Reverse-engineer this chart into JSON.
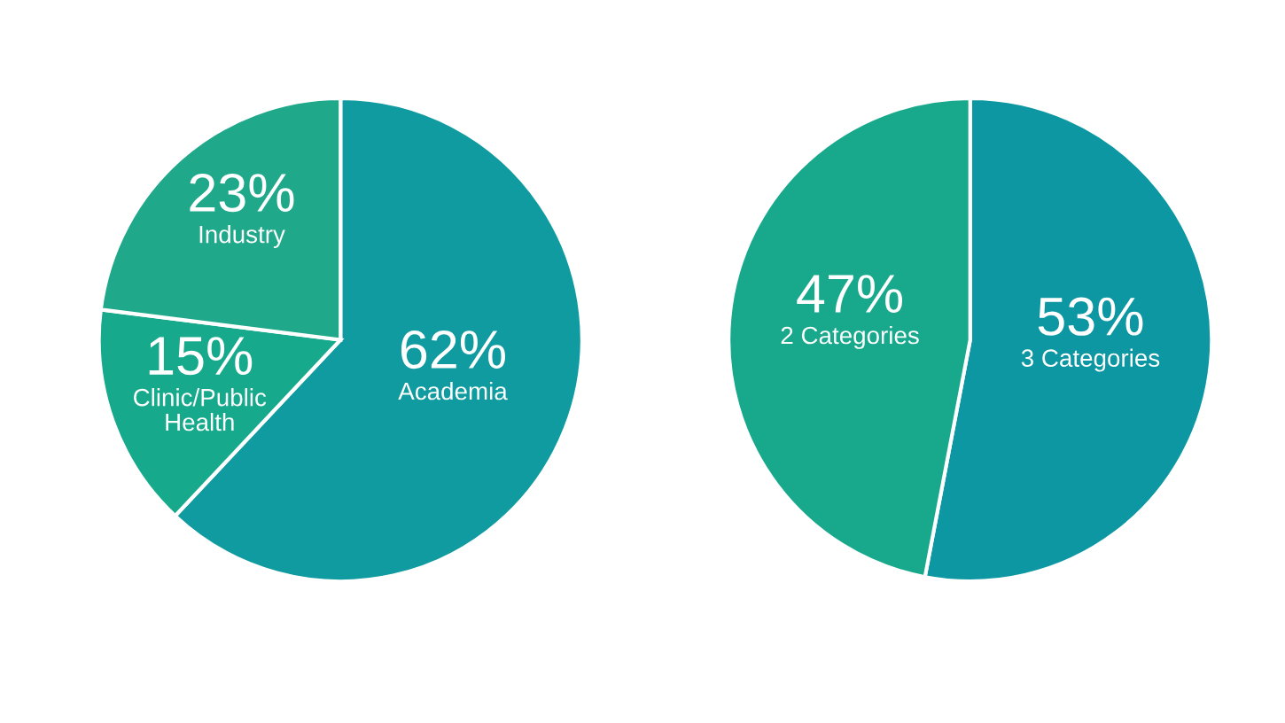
{
  "chart_data": [
    {
      "type": "pie",
      "categories": [
        "Academia",
        "Clinic/Public Health",
        "Industry"
      ],
      "values": [
        62,
        15,
        23
      ],
      "colors": [
        "#0f9b9f",
        "#16a98c",
        "#1fa98a"
      ],
      "value_labels": [
        "62%",
        "15%",
        "23%"
      ]
    },
    {
      "type": "pie",
      "categories": [
        "3 Categories",
        "2 Categories"
      ],
      "values": [
        53,
        47
      ],
      "colors": [
        "#0c97a3",
        "#18a98c"
      ],
      "value_labels": [
        "53%",
        "47%"
      ]
    }
  ]
}
